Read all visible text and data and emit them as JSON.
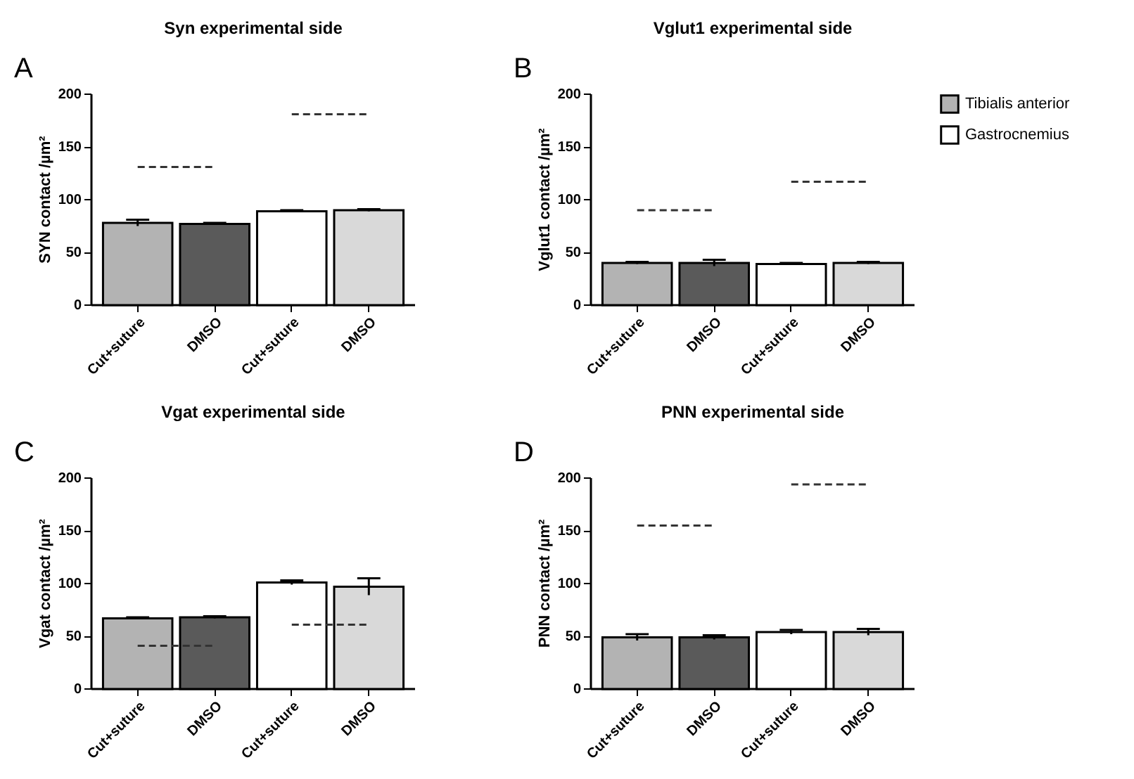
{
  "chart_data": [
    {
      "type": "bar",
      "title": "Syn experimental side",
      "ylabel": "SYN contact /µm²",
      "annotations": [
        "A"
      ],
      "categories": [
        "Cut+suture",
        "DMSO",
        "Cut+suture",
        "DMSO"
      ],
      "ylim": [
        0,
        200
      ],
      "yticks": [
        0,
        50,
        100,
        150,
        200
      ],
      "grid": false,
      "legend": false,
      "series": [
        {
          "color": "#b3b3b3",
          "colors": [
            "#b3b3b3",
            "#5a5a5a",
            null,
            null
          ],
          "values": [
            78,
            77,
            null,
            null
          ],
          "errors": [
            3,
            1,
            null,
            null
          ]
        },
        {
          "color": "#ffffff",
          "colors": [
            null,
            null,
            "#ffffff",
            "#d9d9d9"
          ],
          "values": [
            null,
            null,
            89,
            90
          ],
          "errors": [
            null,
            null,
            1,
            1
          ]
        },
        {
          "type": "line",
          "line_style": "dashed",
          "color": "#333333",
          "values": [
            131,
            131,
            null,
            null
          ]
        },
        {
          "type": "line",
          "line_style": "dashed",
          "color": "#333333",
          "values": [
            null,
            null,
            181,
            181
          ]
        }
      ]
    },
    {
      "type": "bar",
      "title": "Vglut1 experimental side",
      "ylabel": "Vglut1 contact /µm²",
      "annotations": [
        "B"
      ],
      "categories": [
        "Cut+suture",
        "DMSO",
        "Cut+suture",
        "DMSO"
      ],
      "ylim": [
        0,
        200
      ],
      "yticks": [
        0,
        50,
        100,
        150,
        200
      ],
      "grid": false,
      "legend": "right",
      "series": [
        {
          "name": "Tibialis anterior",
          "color": "#b3b3b3",
          "colors": [
            "#b3b3b3",
            "#5a5a5a",
            null,
            null
          ],
          "values": [
            40,
            40,
            null,
            null
          ],
          "errors": [
            1,
            3,
            null,
            null
          ]
        },
        {
          "name": "Gastrocnemius",
          "color": "#ffffff",
          "colors": [
            null,
            null,
            "#ffffff",
            "#d9d9d9"
          ],
          "values": [
            null,
            null,
            39,
            40
          ],
          "errors": [
            null,
            null,
            1,
            1
          ]
        },
        {
          "type": "line",
          "line_style": "dashed",
          "color": "#333333",
          "values": [
            90,
            90,
            null,
            null
          ]
        },
        {
          "type": "line",
          "line_style": "dashed",
          "color": "#333333",
          "values": [
            null,
            null,
            117,
            117
          ]
        }
      ]
    },
    {
      "type": "bar",
      "title": "Vgat experimental side",
      "ylabel": "Vgat contact /µm²",
      "annotations": [
        "C"
      ],
      "categories": [
        "Cut+suture",
        "DMSO",
        "Cut+suture",
        "DMSO"
      ],
      "ylim": [
        0,
        200
      ],
      "yticks": [
        0,
        50,
        100,
        150,
        200
      ],
      "grid": false,
      "legend": false,
      "series": [
        {
          "color": "#b3b3b3",
          "colors": [
            "#b3b3b3",
            "#5a5a5a",
            null,
            null
          ],
          "values": [
            67,
            68,
            null,
            null
          ],
          "errors": [
            1,
            1,
            null,
            null
          ]
        },
        {
          "color": "#ffffff",
          "colors": [
            null,
            null,
            "#ffffff",
            "#d9d9d9"
          ],
          "values": [
            null,
            null,
            101,
            97
          ],
          "errors": [
            null,
            null,
            2,
            8
          ]
        },
        {
          "type": "line",
          "line_style": "dashed",
          "color": "#333333",
          "values": [
            41,
            41,
            null,
            null
          ]
        },
        {
          "type": "line",
          "line_style": "dashed",
          "color": "#333333",
          "values": [
            null,
            null,
            61,
            61
          ]
        }
      ]
    },
    {
      "type": "bar",
      "title": "PNN experimental side",
      "ylabel": "PNN contact /µm²",
      "annotations": [
        "D"
      ],
      "categories": [
        "Cut+suture",
        "DMSO",
        "Cut+suture",
        "DMSO"
      ],
      "ylim": [
        0,
        200
      ],
      "yticks": [
        0,
        50,
        100,
        150,
        200
      ],
      "grid": false,
      "legend": false,
      "series": [
        {
          "color": "#b3b3b3",
          "colors": [
            "#b3b3b3",
            "#5a5a5a",
            null,
            null
          ],
          "values": [
            49,
            49,
            null,
            null
          ],
          "errors": [
            3,
            2,
            null,
            null
          ]
        },
        {
          "color": "#ffffff",
          "colors": [
            null,
            null,
            "#ffffff",
            "#d9d9d9"
          ],
          "values": [
            null,
            null,
            54,
            54
          ],
          "errors": [
            null,
            null,
            2,
            3
          ]
        },
        {
          "type": "line",
          "line_style": "dashed",
          "color": "#333333",
          "values": [
            155,
            155,
            null,
            null
          ]
        },
        {
          "type": "line",
          "line_style": "dashed",
          "color": "#333333",
          "values": [
            null,
            null,
            194,
            194
          ]
        }
      ]
    }
  ]
}
